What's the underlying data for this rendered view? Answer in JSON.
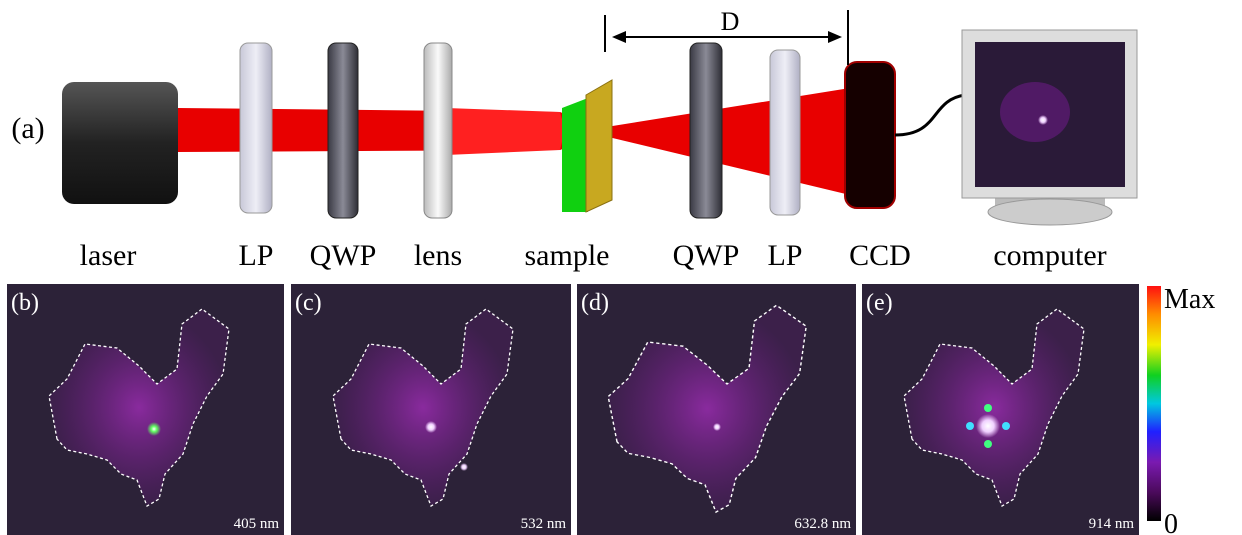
{
  "setup": {
    "panel_label": "(a)",
    "distance_label": "D",
    "components": [
      "laser",
      "LP",
      "QWP",
      "lens",
      "sample",
      "QWP",
      "LP",
      "CCD",
      "computer"
    ]
  },
  "panels": [
    {
      "label": "(b)",
      "wavelength": "405 nm"
    },
    {
      "label": "(c)",
      "wavelength": "532 nm"
    },
    {
      "label": "(d)",
      "wavelength": "632.8 nm"
    },
    {
      "label": "(e)",
      "wavelength": "914 nm"
    }
  ],
  "colorbar": {
    "max_label": "Max",
    "min_label": "0"
  }
}
